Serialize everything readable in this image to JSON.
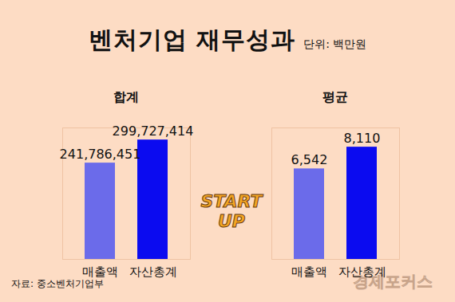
{
  "title": "벤처기업 재무성과",
  "unit": "단위: 백만원",
  "source": "자료: 중소벤처기업부",
  "annotation": "START UP",
  "logo": "경제포커스",
  "chart_data": [
    {
      "type": "bar",
      "title": "합계",
      "categories": [
        "매출액",
        "자산총계"
      ],
      "values": [
        241786451,
        299727414
      ],
      "value_labels": [
        "241,786,451",
        "299,727,414"
      ],
      "colors": [
        "#6b6bea",
        "#0b0bf0"
      ],
      "ylim": [
        0,
        330000000
      ],
      "yticks": [],
      "data_labels": true,
      "tick_labels": "x"
    },
    {
      "type": "bar",
      "title": "평균",
      "categories": [
        "매출액",
        "자산총계"
      ],
      "values": [
        6542,
        8110
      ],
      "value_labels": [
        "6,542",
        "8,110"
      ],
      "colors": [
        "#6b6bea",
        "#0b0bf0"
      ],
      "ylim": [
        0,
        9500
      ],
      "yticks": [],
      "data_labels": true,
      "tick_labels": "x"
    }
  ]
}
